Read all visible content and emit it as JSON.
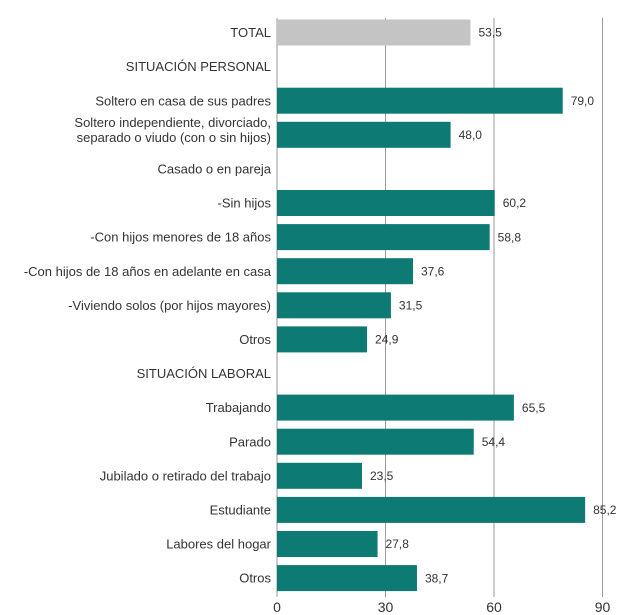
{
  "chart_data": {
    "type": "bar",
    "orientation": "horizontal",
    "title": "",
    "xlabel": "",
    "ylabel": "",
    "xlim": [
      0,
      90
    ],
    "x_ticks": [
      "0",
      "30",
      "60",
      "90"
    ],
    "grid": "vertical",
    "colors": {
      "total": "#c4c4c4",
      "bar": "#0d7a74"
    },
    "rows": [
      {
        "label": "TOTAL",
        "value": 53.5,
        "value_label": "53,5",
        "kind": "total"
      },
      {
        "label": "SITUACIÓN PERSONAL",
        "value": null,
        "value_label": "",
        "kind": "header"
      },
      {
        "label": "Soltero en casa de sus padres",
        "value": 79.0,
        "value_label": "79,0",
        "kind": "bar"
      },
      {
        "label": "Soltero independiente, divorciado, separado o viudo (con o sin hijos)",
        "lines": [
          "Soltero independiente, divorciado,",
          "separado o viudo (con o sin hijos)"
        ],
        "value": 48.0,
        "value_label": "48,0",
        "kind": "bar"
      },
      {
        "label": "Casado o en pareja",
        "value": null,
        "value_label": "",
        "kind": "header"
      },
      {
        "label": "-Sin hijos",
        "value": 60.2,
        "value_label": "60,2",
        "kind": "bar"
      },
      {
        "label": "-Con hijos menores de 18 años",
        "value": 58.8,
        "value_label": "58,8",
        "kind": "bar"
      },
      {
        "label": "-Con hijos de 18 años en adelante en casa",
        "value": 37.6,
        "value_label": "37,6",
        "kind": "bar"
      },
      {
        "label": "-Viviendo solos (por hijos mayores)",
        "value": 31.5,
        "value_label": "31,5",
        "kind": "bar"
      },
      {
        "label": "Otros",
        "value": 24.9,
        "value_label": "24,9",
        "kind": "bar"
      },
      {
        "label": "SITUACIÓN LABORAL",
        "value": null,
        "value_label": "",
        "kind": "header"
      },
      {
        "label": "Trabajando",
        "value": 65.5,
        "value_label": "65,5",
        "kind": "bar"
      },
      {
        "label": "Parado",
        "value": 54.4,
        "value_label": "54,4",
        "kind": "bar"
      },
      {
        "label": "Jubilado o retirado del trabajo",
        "value": 23.5,
        "value_label": "23,5",
        "kind": "bar"
      },
      {
        "label": "Estudiante",
        "value": 85.2,
        "value_label": "85,2",
        "kind": "bar"
      },
      {
        "label": "Labores del hogar",
        "value": 27.8,
        "value_label": "27,8",
        "kind": "bar"
      },
      {
        "label": "Otros",
        "value": 38.7,
        "value_label": "38,7",
        "kind": "bar"
      }
    ]
  }
}
